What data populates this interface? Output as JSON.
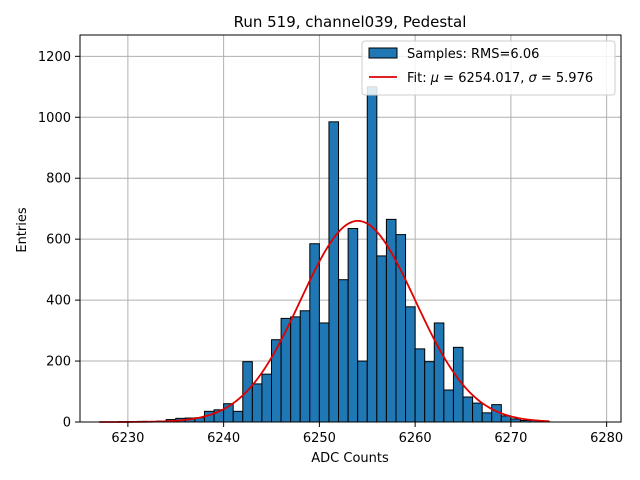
{
  "chart_data": {
    "type": "histogram",
    "title": "Run 519, channel039, Pedestal",
    "xlabel": "ADC Counts",
    "ylabel": "Entries",
    "xlim": [
      6225,
      6281.5
    ],
    "ylim": [
      0,
      1270
    ],
    "x_ticks": [
      6230,
      6240,
      6250,
      6260,
      6270,
      6280
    ],
    "y_ticks": [
      0,
      200,
      400,
      600,
      800,
      1000,
      1200
    ],
    "grid": true,
    "legend_position": "top-right",
    "colors": {
      "bars": "#1f77b4",
      "bar_edge": "#000000",
      "fit_line": "#e00000",
      "grid": "#b0b0b0"
    },
    "bins": {
      "left_edges": [
        6227,
        6228,
        6229,
        6230,
        6231,
        6232,
        6233,
        6234,
        6235,
        6236,
        6237,
        6238,
        6239,
        6240,
        6241,
        6242,
        6243,
        6244,
        6245,
        6246,
        6247,
        6248,
        6249,
        6250,
        6251,
        6252,
        6253,
        6254,
        6255,
        6256,
        6257,
        6258,
        6259,
        6260,
        6261,
        6262,
        6263,
        6264,
        6265,
        6266,
        6267,
        6268,
        6269,
        6270,
        6271,
        6272,
        6273
      ],
      "width": 1,
      "counts": [
        0,
        0,
        1,
        0,
        2,
        1,
        3,
        8,
        12,
        13,
        14,
        35,
        40,
        60,
        35,
        198,
        125,
        157,
        270,
        340,
        345,
        365,
        585,
        325,
        985,
        467,
        635,
        200,
        1100,
        545,
        665,
        615,
        378,
        240,
        198,
        325,
        105,
        245,
        82,
        62,
        30,
        57,
        20,
        10,
        5,
        5,
        2
      ]
    },
    "series": [
      {
        "name": "Samples: RMS=6.06",
        "kind": "histogram"
      },
      {
        "name": "Fit: μ = 6254.017, σ = 5.976",
        "kind": "gaussian",
        "mu": 6254.017,
        "sigma": 5.976,
        "amplitude": 660,
        "x_range": [
          6227,
          6274
        ]
      }
    ],
    "legend": {
      "samples_label": "Samples: RMS=6.06",
      "fit_prefix": "Fit: ",
      "mu_symbol": "μ",
      "mu_text": " = 6254.017, ",
      "sigma_symbol": "σ",
      "sigma_text": " = 5.976"
    }
  }
}
